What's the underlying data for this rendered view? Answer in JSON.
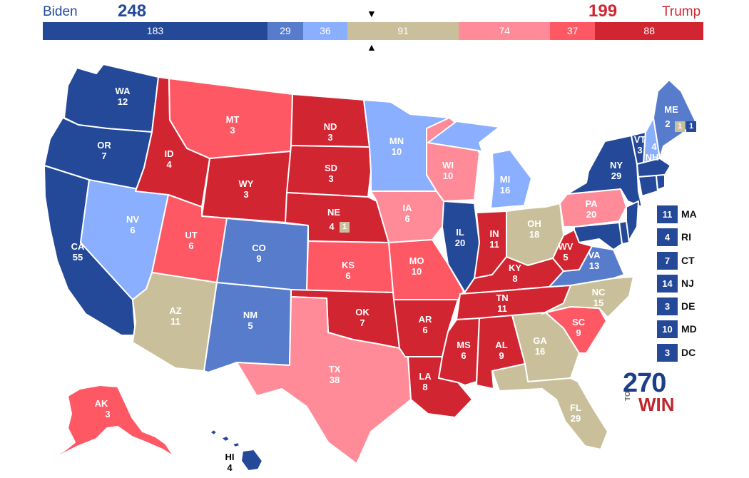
{
  "colors": {
    "safe_d": "#244999",
    "likely_d": "#577ccc",
    "lean_d": "#8aafff",
    "tossup": "#c9c09b",
    "lean_r": "#ff8b98",
    "likely_r": "#ff5865",
    "safe_r": "#d22532"
  },
  "header": {
    "dem_name": "Biden",
    "dem_total": "248",
    "rep_name": "Trump",
    "rep_total": "199",
    "marker_up": "▼",
    "marker_down": "▲"
  },
  "bar": [
    {
      "label": "183",
      "value": 183,
      "rating": "safe_d"
    },
    {
      "label": "29",
      "value": 29,
      "rating": "likely_d"
    },
    {
      "label": "36",
      "value": 36,
      "rating": "lean_d"
    },
    {
      "label": "91",
      "value": 91,
      "rating": "tossup"
    },
    {
      "label": "74",
      "value": 74,
      "rating": "lean_r"
    },
    {
      "label": "37",
      "value": 37,
      "rating": "likely_r"
    },
    {
      "label": "88",
      "value": 88,
      "rating": "safe_r"
    }
  ],
  "states": [
    {
      "abbr": "WA",
      "ev": "12",
      "rating": "safe_d"
    },
    {
      "abbr": "OR",
      "ev": "7",
      "rating": "safe_d"
    },
    {
      "abbr": "CA",
      "ev": "55",
      "rating": "safe_d"
    },
    {
      "abbr": "NV",
      "ev": "6",
      "rating": "lean_d"
    },
    {
      "abbr": "ID",
      "ev": "4",
      "rating": "safe_r"
    },
    {
      "abbr": "MT",
      "ev": "3",
      "rating": "likely_r"
    },
    {
      "abbr": "WY",
      "ev": "3",
      "rating": "safe_r"
    },
    {
      "abbr": "UT",
      "ev": "6",
      "rating": "likely_r"
    },
    {
      "abbr": "AZ",
      "ev": "11",
      "rating": "tossup"
    },
    {
      "abbr": "CO",
      "ev": "9",
      "rating": "likely_d"
    },
    {
      "abbr": "NM",
      "ev": "5",
      "rating": "likely_d"
    },
    {
      "abbr": "ND",
      "ev": "3",
      "rating": "safe_r"
    },
    {
      "abbr": "SD",
      "ev": "3",
      "rating": "safe_r"
    },
    {
      "abbr": "NE",
      "ev": "4",
      "rating": "safe_r"
    },
    {
      "abbr": "KS",
      "ev": "6",
      "rating": "likely_r"
    },
    {
      "abbr": "OK",
      "ev": "7",
      "rating": "safe_r"
    },
    {
      "abbr": "TX",
      "ev": "38",
      "rating": "lean_r"
    },
    {
      "abbr": "MN",
      "ev": "10",
      "rating": "lean_d"
    },
    {
      "abbr": "IA",
      "ev": "6",
      "rating": "lean_r"
    },
    {
      "abbr": "MO",
      "ev": "10",
      "rating": "likely_r"
    },
    {
      "abbr": "AR",
      "ev": "6",
      "rating": "safe_r"
    },
    {
      "abbr": "LA",
      "ev": "8",
      "rating": "safe_r"
    },
    {
      "abbr": "WI",
      "ev": "10",
      "rating": "lean_r"
    },
    {
      "abbr": "IL",
      "ev": "20",
      "rating": "safe_d"
    },
    {
      "abbr": "MI",
      "ev": "16",
      "rating": "lean_d"
    },
    {
      "abbr": "IN",
      "ev": "11",
      "rating": "safe_r"
    },
    {
      "abbr": "OH",
      "ev": "18",
      "rating": "tossup"
    },
    {
      "abbr": "KY",
      "ev": "8",
      "rating": "safe_r"
    },
    {
      "abbr": "TN",
      "ev": "11",
      "rating": "safe_r"
    },
    {
      "abbr": "MS",
      "ev": "6",
      "rating": "safe_r"
    },
    {
      "abbr": "AL",
      "ev": "9",
      "rating": "safe_r"
    },
    {
      "abbr": "GA",
      "ev": "16",
      "rating": "tossup"
    },
    {
      "abbr": "FL",
      "ev": "29",
      "rating": "tossup"
    },
    {
      "abbr": "SC",
      "ev": "9",
      "rating": "likely_r"
    },
    {
      "abbr": "NC",
      "ev": "15",
      "rating": "tossup"
    },
    {
      "abbr": "VA",
      "ev": "13",
      "rating": "likely_d"
    },
    {
      "abbr": "WV",
      "ev": "5",
      "rating": "safe_r"
    },
    {
      "abbr": "PA",
      "ev": "20",
      "rating": "lean_r"
    },
    {
      "abbr": "NY",
      "ev": "29",
      "rating": "safe_d"
    },
    {
      "abbr": "VT",
      "ev": "3",
      "rating": "safe_d"
    },
    {
      "abbr": "NH",
      "ev": "4",
      "rating": "lean_d"
    },
    {
      "abbr": "ME",
      "ev": "2",
      "rating": "likely_d"
    },
    {
      "abbr": "AK",
      "ev": "3",
      "rating": "likely_r"
    },
    {
      "abbr": "HI",
      "ev": "4",
      "rating": "safe_d"
    }
  ],
  "me_districts": [
    {
      "ev": "1",
      "rating": "tossup"
    },
    {
      "ev": "1",
      "rating": "safe_d"
    }
  ],
  "ne_district": {
    "ev": "1",
    "rating": "tossup"
  },
  "small_states": [
    {
      "abbr": "MA",
      "ev": "11",
      "rating": "safe_d"
    },
    {
      "abbr": "RI",
      "ev": "4",
      "rating": "safe_d"
    },
    {
      "abbr": "CT",
      "ev": "7",
      "rating": "safe_d"
    },
    {
      "abbr": "NJ",
      "ev": "14",
      "rating": "safe_d"
    },
    {
      "abbr": "DE",
      "ev": "3",
      "rating": "safe_d"
    },
    {
      "abbr": "MD",
      "ev": "10",
      "rating": "safe_d"
    },
    {
      "abbr": "DC",
      "ev": "3",
      "rating": "safe_d"
    }
  ],
  "logo": {
    "number": "270",
    "to": "TO",
    "win": "WIN"
  }
}
